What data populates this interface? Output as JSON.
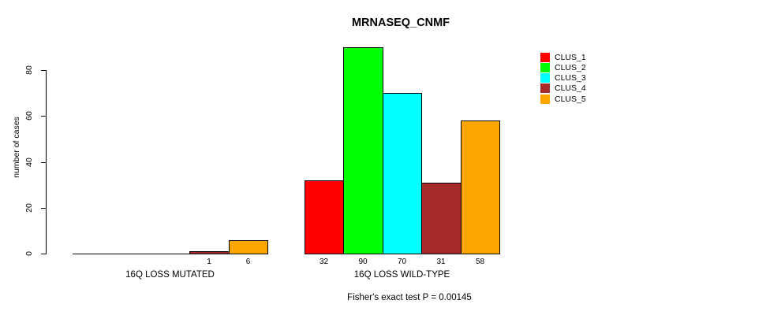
{
  "title": "MRNASEQ_CNMF",
  "footer": {
    "stat_test": "Fisher's exact test P = 0.00145"
  },
  "chart_data": {
    "type": "bar",
    "title": "MRNASEQ_CNMF",
    "xlabel": "",
    "ylabel": "number of cases",
    "ylim": [
      0,
      90
    ],
    "yticks": [
      0,
      20,
      40,
      60,
      80
    ],
    "grid": false,
    "legend_position": "top-right",
    "series": [
      {
        "name": "CLUS_1",
        "color": "#FF0000"
      },
      {
        "name": "CLUS_2",
        "color": "#00FF00"
      },
      {
        "name": "CLUS_3",
        "color": "#00FFFF"
      },
      {
        "name": "CLUS_4",
        "color": "#A52A2A"
      },
      {
        "name": "CLUS_5",
        "color": "#FFA500"
      }
    ],
    "categories": [
      "16Q LOSS MUTATED",
      "16Q LOSS WILD-TYPE"
    ],
    "groups": [
      {
        "label": "16Q LOSS MUTATED",
        "values": [
          0,
          0,
          0,
          1,
          6
        ],
        "bar_labels": [
          "",
          "",
          "",
          "1",
          "6"
        ]
      },
      {
        "label": "16Q LOSS WILD-TYPE",
        "values": [
          32,
          90,
          70,
          31,
          58
        ],
        "bar_labels": [
          "32",
          "90",
          "70",
          "31",
          "58"
        ]
      }
    ],
    "annotation": "Fisher's exact test P = 0.00145"
  }
}
